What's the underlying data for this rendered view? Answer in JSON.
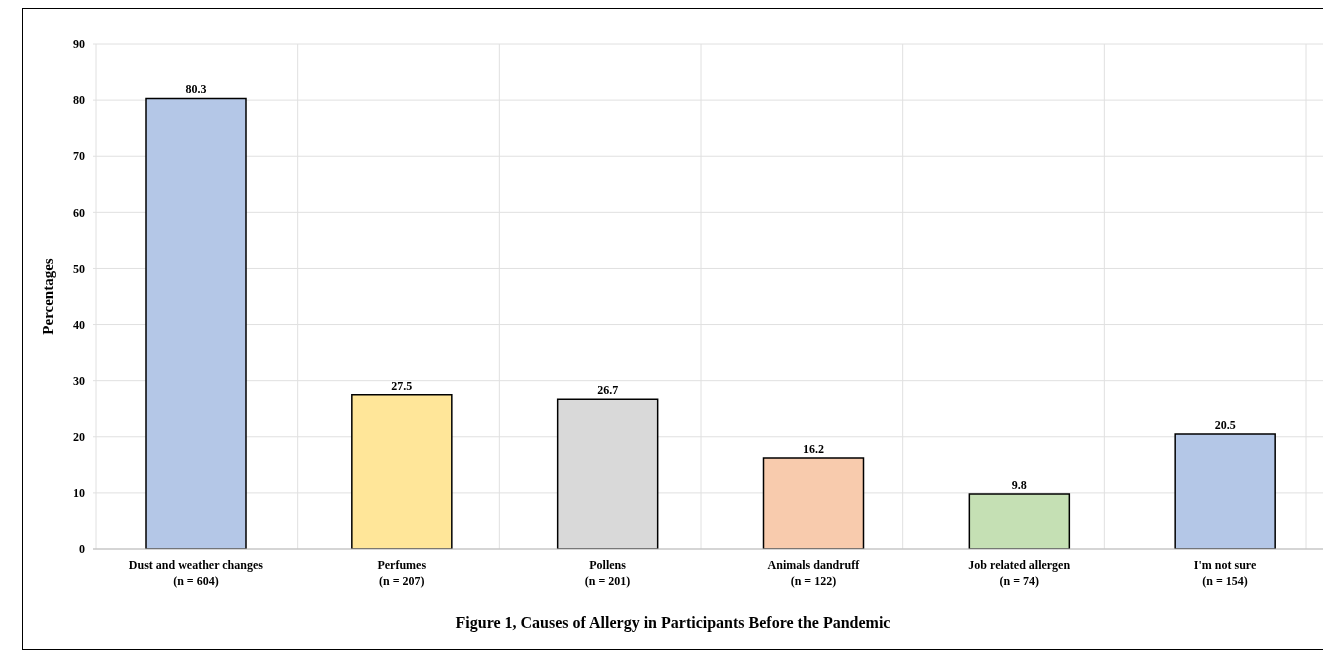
{
  "chart_data": {
    "type": "bar",
    "title": "Figure 1, Causes of Allergy in Participants Before the Pandemic",
    "ylabel": "Percentages",
    "categories": [
      "Dust and weather changes\n(n = 604)",
      "Perfumes\n(n = 207)",
      "Pollens\n(n = 201)",
      "Animals dandruff\n(n = 122)",
      "Job related allergen\n(n = 74)",
      "I'm not sure\n(n = 154)"
    ],
    "values": [
      80.3,
      27.5,
      26.7,
      16.2,
      9.8,
      20.5
    ],
    "colors": [
      "#b4c7e7",
      "#ffe699",
      "#d9d9d9",
      "#f8cbad",
      "#c5e0b4",
      "#b4c7e7"
    ],
    "ylim": [
      0,
      90
    ],
    "yticks": [
      0,
      10,
      20,
      30,
      40,
      50,
      60,
      70,
      80,
      90
    ],
    "grid": true,
    "data_labels": true
  }
}
